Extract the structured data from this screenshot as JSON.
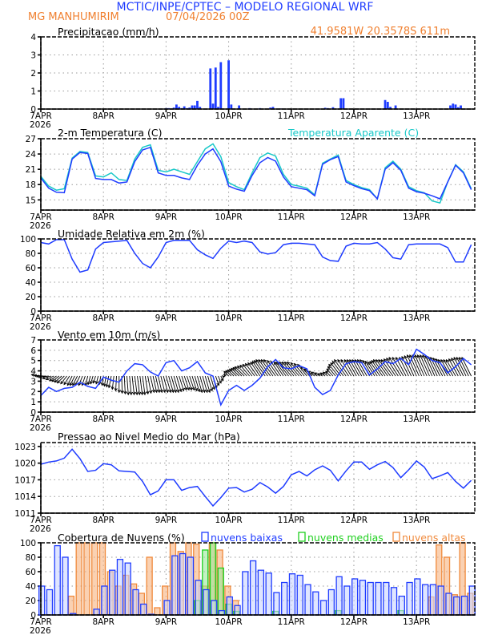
{
  "header": {
    "title": "MCTIC/INPE/CPTEC – MODELO REGIONAL WRF",
    "location": "MG MANHUMIRIM",
    "run": "07/04/2026 00Z",
    "coords": "41.9581W 20.3578S 611m"
  },
  "colors": {
    "blue": "#1f3cff",
    "cyan": "#18c8c8",
    "green": "#1fd01f",
    "orange": "#f08a3c",
    "title": "#1f3cff",
    "accent": "#f08030"
  },
  "chart_data": [
    {
      "id": "precip",
      "type": "bar",
      "title": "Precipitacao (mm/h)",
      "x_unit": "hours since 07APR2026 00Z",
      "x_days": [
        "7APR",
        "8APR",
        "9APR",
        "10APR",
        "11APR",
        "12APR",
        "13APR"
      ],
      "year": "2026",
      "ylim": [
        0,
        4
      ],
      "yticks": [
        0,
        1,
        2,
        3,
        4
      ],
      "grid": true,
      "points": [
        [
          48,
          0.05
        ],
        [
          49,
          0.05
        ],
        [
          50,
          0.03
        ],
        [
          51,
          0.08
        ],
        [
          52,
          0.25
        ],
        [
          53,
          0.12
        ],
        [
          54,
          0.05
        ],
        [
          55,
          0.15
        ],
        [
          56,
          0.05
        ],
        [
          57,
          0.08
        ],
        [
          58,
          0.2
        ],
        [
          59,
          0.2
        ],
        [
          60,
          0.45
        ],
        [
          61,
          0.12
        ],
        [
          65,
          2.25
        ],
        [
          66,
          0.3
        ],
        [
          67,
          2.3
        ],
        [
          68,
          0.12
        ],
        [
          69,
          2.6
        ],
        [
          72,
          2.7
        ],
        [
          73,
          0.25
        ],
        [
          76,
          0.2
        ],
        [
          80,
          0.05
        ],
        [
          84,
          0.05
        ],
        [
          88,
          0.08
        ],
        [
          89,
          0.12
        ],
        [
          92,
          0.03
        ],
        [
          109,
          0.07
        ],
        [
          110,
          0.05
        ],
        [
          112,
          0.1
        ],
        [
          115,
          0.6
        ],
        [
          116,
          0.6
        ],
        [
          132,
          0.5
        ],
        [
          133,
          0.4
        ],
        [
          134,
          0.12
        ],
        [
          136,
          0.2
        ],
        [
          157,
          0.2
        ],
        [
          158,
          0.3
        ],
        [
          159,
          0.25
        ],
        [
          160,
          0.1
        ],
        [
          161,
          0.2
        ]
      ]
    },
    {
      "id": "temp",
      "type": "line",
      "title": "2-m Temperatura (C)",
      "legend": "Temperatura Aparente (C)",
      "x_step_hours": 3,
      "ylim": [
        13,
        27
      ],
      "yticks": [
        15,
        18,
        21,
        24,
        27
      ],
      "grid": true,
      "series": [
        {
          "name": "2-m Temperatura (C)",
          "values": [
            19.3,
            17.3,
            16.5,
            16.4,
            23.0,
            24.3,
            24.1,
            19.2,
            19.0,
            19.0,
            18.3,
            18.5,
            22.5,
            24.8,
            25.3,
            20.3,
            19.8,
            19.8,
            19.3,
            19.0,
            21.8,
            24.0,
            25.0,
            22.5,
            17.7,
            17.1,
            16.7,
            19.8,
            22.3,
            23.3,
            22.6,
            19.5,
            17.6,
            17.3,
            17.0,
            15.8,
            22.0,
            22.9,
            23.5,
            18.5,
            17.8,
            17.2,
            16.8,
            15.2,
            21.0,
            22.3,
            20.8,
            17.3,
            16.6,
            16.3,
            15.8,
            15.2,
            18.5,
            21.8,
            20.3,
            17.0
          ]
        },
        {
          "name": "Temperatura Aparente (C)",
          "values": [
            19.6,
            17.7,
            16.9,
            17.2,
            23.2,
            24.5,
            24.3,
            19.7,
            19.5,
            20.3,
            19.0,
            18.8,
            23.0,
            25.3,
            25.8,
            20.8,
            20.5,
            21.0,
            20.5,
            20.0,
            22.5,
            25.0,
            26.0,
            23.5,
            18.4,
            17.6,
            17.0,
            20.3,
            23.3,
            24.2,
            23.6,
            20.0,
            18.0,
            17.7,
            17.3,
            16.0,
            22.2,
            23.0,
            23.8,
            18.8,
            18.0,
            17.4,
            17.0,
            15.2,
            21.3,
            22.6,
            21.0,
            17.6,
            16.8,
            16.4,
            14.8,
            14.4,
            18.5,
            21.9,
            20.5,
            17.2
          ]
        }
      ]
    },
    {
      "id": "rh",
      "type": "line",
      "title": "Umidade Relativa em 2m (%)",
      "x_step_hours": 3,
      "ylim": [
        0,
        100
      ],
      "yticks": [
        0,
        20,
        40,
        60,
        80,
        100
      ],
      "grid": true,
      "values": [
        95,
        93,
        99,
        99,
        72,
        54,
        57,
        86,
        95,
        96,
        97,
        98,
        80,
        66,
        60,
        75,
        95,
        98,
        98,
        98,
        85,
        78,
        73,
        87,
        97,
        95,
        97,
        95,
        82,
        79,
        81,
        92,
        94,
        94,
        93,
        92,
        75,
        70,
        69,
        90,
        94,
        93,
        93,
        95,
        86,
        74,
        72,
        92,
        93,
        93,
        93,
        93,
        88,
        68,
        68,
        92
      ]
    },
    {
      "id": "wind",
      "type": "line",
      "title": "Vento em 10m (m/s)",
      "x_step_hours": 3,
      "ylim": [
        0,
        7
      ],
      "yticks": [
        0,
        1,
        2,
        3,
        4,
        5,
        6,
        7
      ],
      "grid": true,
      "vector_baseline": 3.5,
      "speed": [
        1.6,
        2.4,
        2.0,
        2.3,
        2.4,
        2.9,
        2.5,
        2.3,
        3.4,
        3.1,
        2.9,
        4.0,
        4.7,
        4.6,
        3.9,
        3.5,
        4.8,
        5.0,
        4.0,
        4.3,
        4.9,
        3.8,
        3.5,
        0.7,
        2.1,
        2.6,
        2.1,
        2.6,
        3.3,
        4.4,
        5.1,
        4.3,
        4.2,
        4.5,
        4.2,
        2.4,
        1.7,
        2.1,
        3.6,
        4.7,
        4.9,
        4.8,
        3.6,
        4.2,
        4.9,
        4.7,
        5.2,
        4.6,
        6.1,
        5.6,
        5.0,
        4.8,
        3.8,
        4.4,
        5.2,
        4.6
      ],
      "u": [
        -2,
        -2,
        -1.5,
        -1.5,
        -1,
        -1,
        -0.5,
        -0.5,
        -0.3,
        -0.5,
        0,
        0.3,
        0.5,
        0.5,
        0.8,
        0.8,
        1,
        1,
        1,
        1,
        1,
        1,
        0.8,
        0.5,
        -1,
        -1.5,
        -2,
        -2,
        -2,
        -2.5,
        -2.5,
        -2,
        -2.5,
        -2.5,
        -2,
        -1.5,
        -1,
        -1,
        -2,
        -2.5,
        -2,
        -2,
        -2,
        -2,
        -2.5,
        -2.5,
        -2.5,
        -2,
        -2,
        -2,
        -2,
        -2,
        -2,
        -2,
        -2,
        -2
      ],
      "v": [
        0.3,
        -0.3,
        -1,
        -1.5,
        -2,
        -2,
        -2,
        -1.5,
        -2,
        -2.5,
        -3.5,
        -4,
        -4,
        -4,
        -3.5,
        -3.5,
        -3.5,
        -3.5,
        -3,
        -3,
        -3.5,
        -3.5,
        -2.5,
        -1,
        1,
        1.5,
        2,
        2.5,
        3,
        3.5,
        3.5,
        3,
        3,
        3,
        2.5,
        1,
        0.5,
        1,
        2.5,
        3.5,
        3.5,
        3.5,
        3.5,
        3,
        3.5,
        3.5,
        4,
        4,
        4.5,
        4.5,
        4.5,
        4,
        3.5,
        3.5,
        4,
        4
      ]
    },
    {
      "id": "pres",
      "type": "line",
      "title": "Pressao ao Nivel Medio do Mar (hPa)",
      "x_step_hours": 3,
      "ylim": [
        1011,
        1023.7
      ],
      "yticks": [
        1011,
        1014,
        1017,
        1020,
        1023
      ],
      "grid": true,
      "values": [
        1019.8,
        1020.2,
        1020.4,
        1020.9,
        1022.5,
        1020.8,
        1018.5,
        1018.7,
        1019.9,
        1019.7,
        1018.6,
        1018.5,
        1018.4,
        1016.7,
        1014.3,
        1015.0,
        1017.0,
        1017.0,
        1015.1,
        1015.6,
        1015.8,
        1014.0,
        1012.3,
        1013.8,
        1015.5,
        1015.6,
        1014.8,
        1015.3,
        1016.5,
        1015.7,
        1014.6,
        1015.8,
        1017.9,
        1018.5,
        1017.7,
        1018.8,
        1019.5,
        1018.7,
        1016.8,
        1018.6,
        1020.2,
        1020.2,
        1018.9,
        1019.7,
        1020.3,
        1019.2,
        1017.4,
        1018.8,
        1020.4,
        1019.3,
        1017.2,
        1017.7,
        1018.3,
        1016.7,
        1015.5,
        1016.9
      ]
    },
    {
      "id": "cloud",
      "type": "bar",
      "title": "Cobertura de Nuvens (%)",
      "x_step_hours": 3,
      "ylim": [
        0,
        100
      ],
      "yticks": [
        0,
        20,
        40,
        60,
        80,
        100
      ],
      "grid": true,
      "series": [
        {
          "name": "nuvens altas",
          "values": [
            0,
            0,
            0,
            0,
            26,
            100,
            100,
            100,
            100,
            60,
            40,
            55,
            43,
            30,
            80,
            10,
            40,
            100,
            88,
            100,
            98,
            40,
            100,
            90,
            40,
            20,
            0,
            0,
            0,
            0,
            0,
            0,
            0,
            0,
            0,
            0,
            0,
            0,
            0,
            0,
            0,
            0,
            0,
            0,
            0,
            0,
            0,
            0,
            0,
            0,
            25,
            97,
            80,
            28,
            100,
            30
          ]
        },
        {
          "name": "nuvens medias",
          "values": [
            0,
            0,
            0,
            0,
            0,
            0,
            0,
            0,
            0,
            0,
            0,
            0,
            0,
            0,
            0,
            0,
            0,
            0,
            0,
            0,
            20,
            90,
            100,
            65,
            15,
            5,
            0,
            0,
            0,
            0,
            5,
            0,
            0,
            0,
            0,
            0,
            0,
            0,
            6,
            0,
            0,
            0,
            0,
            0,
            0,
            0,
            6,
            0,
            0,
            0,
            0,
            0,
            0,
            0,
            0,
            0
          ]
        },
        {
          "name": "nuvens baixas",
          "values": [
            40,
            35,
            96,
            80,
            2,
            0,
            0,
            8,
            40,
            62,
            77,
            72,
            35,
            15,
            1,
            0,
            20,
            82,
            85,
            80,
            48,
            35,
            20,
            6,
            25,
            13,
            60,
            75,
            62,
            58,
            31,
            45,
            57,
            55,
            42,
            32,
            20,
            35,
            53,
            40,
            50,
            48,
            45,
            45,
            45,
            38,
            26,
            45,
            50,
            42,
            42,
            40,
            30,
            25,
            26,
            40
          ]
        }
      ]
    }
  ]
}
